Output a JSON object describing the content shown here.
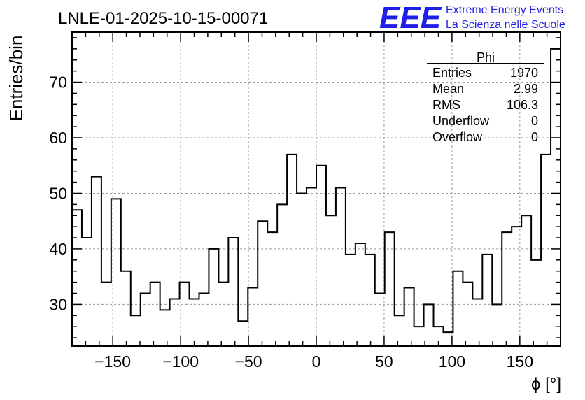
{
  "colors": {
    "logo": "#1f1fe6",
    "grid": "#9a9a9a",
    "line": "#000000"
  },
  "logo": {
    "mark": "EEE",
    "line1": "Extreme Energy Events",
    "line2": "La Scienza nelle Scuole"
  },
  "stats_box": {
    "title": "Phi",
    "rows": [
      {
        "label": "Entries",
        "value": "1970"
      },
      {
        "label": "Mean",
        "value": "2.99"
      },
      {
        "label": "RMS",
        "value": "106.3"
      },
      {
        "label": "Underflow",
        "value": "0"
      },
      {
        "label": "Overflow",
        "value": "0"
      }
    ]
  },
  "chart_data": {
    "type": "histogram",
    "title": "LNLE-01-2025-10-15-00071",
    "xlabel": "ϕ [°]",
    "ylabel": "Entries/bin",
    "xlim": [
      -180,
      180
    ],
    "ylim": [
      22.5,
      79
    ],
    "grid": true,
    "bin_width": 7.2,
    "bin_edges_start": -180,
    "values": [
      47,
      42,
      53,
      34,
      49,
      36,
      28,
      32,
      34,
      29,
      31,
      34,
      31,
      32,
      40,
      34,
      42,
      27,
      33,
      45,
      43,
      48,
      57,
      50,
      51,
      55,
      46,
      51,
      39,
      41,
      39,
      32,
      43,
      28,
      33,
      26,
      30,
      26,
      25,
      36,
      34,
      31,
      39,
      30,
      43,
      44,
      46,
      38,
      57,
      76
    ],
    "x_ticks": [
      -150,
      -100,
      -50,
      0,
      50,
      100,
      150
    ],
    "x_tick_labels": [
      "−150",
      "−100",
      "−50",
      "0",
      "50",
      "100",
      "150"
    ],
    "y_ticks": [
      30,
      40,
      50,
      60,
      70
    ],
    "y_tick_labels": [
      "30",
      "40",
      "50",
      "60",
      "70"
    ]
  }
}
